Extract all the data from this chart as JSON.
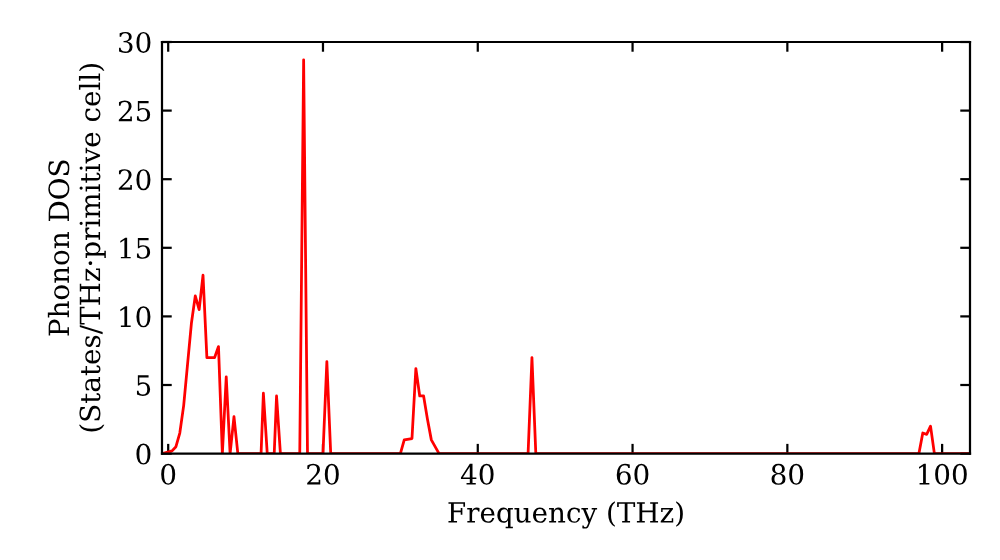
{
  "chart_data": {
    "type": "line",
    "xlabel": "Frequency (THz)",
    "ylabel": "Phonon DOS\n(States/THz·primitive cell)",
    "xlim": [
      -0.8,
      103.6
    ],
    "ylim": [
      0,
      30
    ],
    "xticks": [
      0,
      20,
      40,
      60,
      80,
      100
    ],
    "yticks": [
      0,
      5,
      10,
      15,
      20,
      25,
      30
    ],
    "grid": false,
    "marker": "none",
    "line_style": "solid",
    "series": [
      {
        "color": "#ff0000",
        "x": [
          -0.8,
          0.5,
          1,
          1.5,
          2,
          2.5,
          3,
          3.5,
          4,
          4.5,
          5,
          6,
          6.5,
          7,
          7.5,
          8,
          8.5,
          9,
          12,
          12.3,
          12.8,
          13.7,
          14,
          14.5,
          17,
          17.5,
          18,
          20,
          20.5,
          21,
          30,
          30.5,
          31.5,
          32,
          32.5,
          33,
          33.5,
          34,
          35,
          46.5,
          47,
          47.5,
          97,
          97.5,
          98,
          98.5,
          99,
          103.6
        ],
        "values": [
          0,
          0.2,
          0.5,
          1.5,
          3.5,
          6.5,
          9.5,
          11.5,
          10.5,
          13,
          7,
          7,
          7.8,
          0,
          5.6,
          0,
          2.7,
          0,
          0,
          4.4,
          0,
          0,
          4.2,
          0,
          0,
          28.7,
          0,
          0,
          6.7,
          0,
          0,
          1,
          1.1,
          6.2,
          4.2,
          4.2,
          2.5,
          1,
          0,
          0,
          7,
          0,
          0,
          1.5,
          1.4,
          2,
          0,
          0
        ]
      }
    ]
  }
}
